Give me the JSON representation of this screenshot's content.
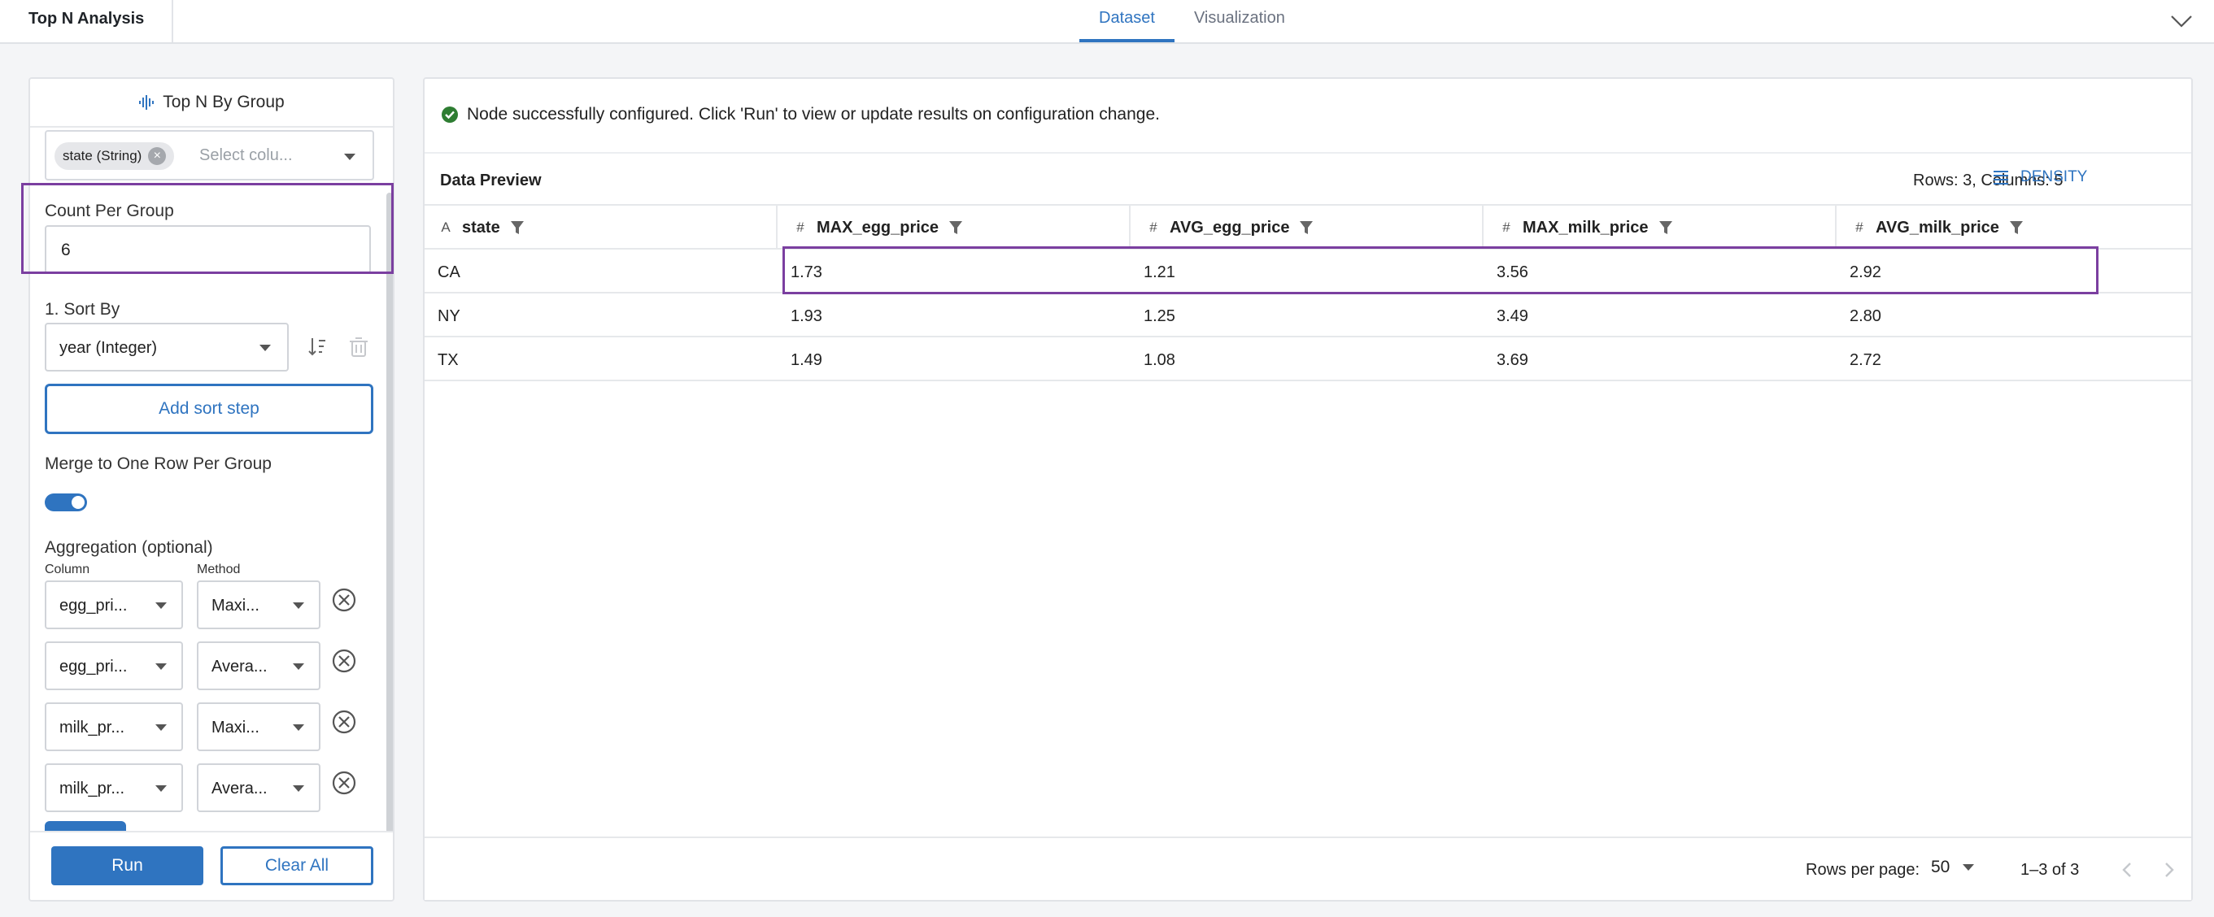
{
  "header": {
    "app_title": "Top N Analysis",
    "tabs": [
      {
        "label": "Dataset",
        "active": true
      },
      {
        "label": "Visualization",
        "active": false
      }
    ]
  },
  "left_panel": {
    "title": "Top N By Group",
    "group_by": {
      "chip": "state (String)",
      "placeholder": "Select colu..."
    },
    "count_per_group": {
      "label": "Count Per Group",
      "value": "6"
    },
    "sort": {
      "label": "1. Sort By",
      "value": "year (Integer)",
      "add_button": "Add sort step"
    },
    "merge": {
      "label": "Merge to One Row Per Group",
      "enabled": true
    },
    "aggregation": {
      "label": "Aggregation (optional)",
      "column_header": "Column",
      "method_header": "Method",
      "rows": [
        {
          "column": "egg_pri...",
          "method": "Maxi..."
        },
        {
          "column": "egg_pri...",
          "method": "Avera..."
        },
        {
          "column": "milk_pr...",
          "method": "Maxi..."
        },
        {
          "column": "milk_pr...",
          "method": "Avera..."
        }
      ]
    },
    "footer": {
      "run_label": "Run",
      "clear_label": "Clear All"
    }
  },
  "right_panel": {
    "status": "Node successfully configured. Click 'Run' to view or update results on configuration change.",
    "preview": {
      "title": "Data Preview",
      "rows_columns": "Rows: 3, Columns: 5",
      "density_label": "DENSITY",
      "columns": [
        {
          "type": "A",
          "name": "state"
        },
        {
          "type": "#",
          "name": "MAX_egg_price"
        },
        {
          "type": "#",
          "name": "AVG_egg_price"
        },
        {
          "type": "#",
          "name": "MAX_milk_price"
        },
        {
          "type": "#",
          "name": "AVG_milk_price"
        }
      ],
      "rows": [
        [
          "CA",
          "1.73",
          "1.21",
          "3.56",
          "2.92"
        ],
        [
          "NY",
          "1.93",
          "1.25",
          "3.49",
          "2.80"
        ],
        [
          "TX",
          "1.49",
          "1.08",
          "3.69",
          "2.72"
        ]
      ],
      "pager": {
        "rows_per_page_label": "Rows per page:",
        "rows_per_page": "50",
        "range": "1–3 of 3"
      }
    }
  },
  "colors": {
    "accent": "#2f74c0",
    "highlight": "#7b3fa0",
    "success": "#2e7d32"
  }
}
